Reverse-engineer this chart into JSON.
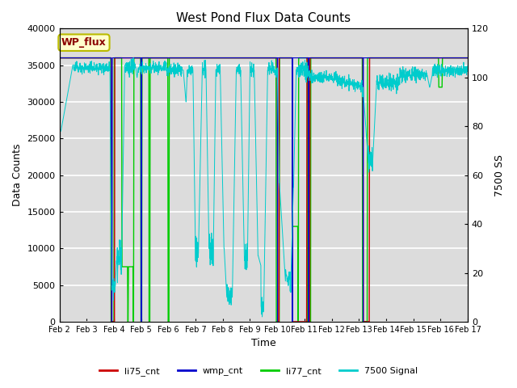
{
  "title": "West Pond Flux Data Counts",
  "ylabel_left": "Data Counts",
  "ylabel_right": "7500 SS",
  "xlabel": "Time",
  "ylim_left": [
    0,
    40000
  ],
  "ylim_right": [
    0,
    120
  ],
  "legend_label": "WP_flux",
  "legend_entries": [
    "li75_cnt",
    "wmp_cnt",
    "li77_cnt",
    "7500 Signal"
  ],
  "legend_colors": [
    "#cc0000",
    "#0000cc",
    "#00cc00",
    "#00cccc"
  ],
  "line_colors": {
    "li75_cnt": "#cc0000",
    "wmp_cnt": "#0000cc",
    "li77_cnt": "#00cc00",
    "signal": "#00cccc"
  },
  "bg_color": "#dcdcdc",
  "grid_color": "#f0f0f0",
  "yticks_left": [
    0,
    5000,
    10000,
    15000,
    20000,
    25000,
    30000,
    35000,
    40000
  ],
  "yticks_right": [
    0,
    20,
    40,
    60,
    80,
    100,
    120
  ]
}
